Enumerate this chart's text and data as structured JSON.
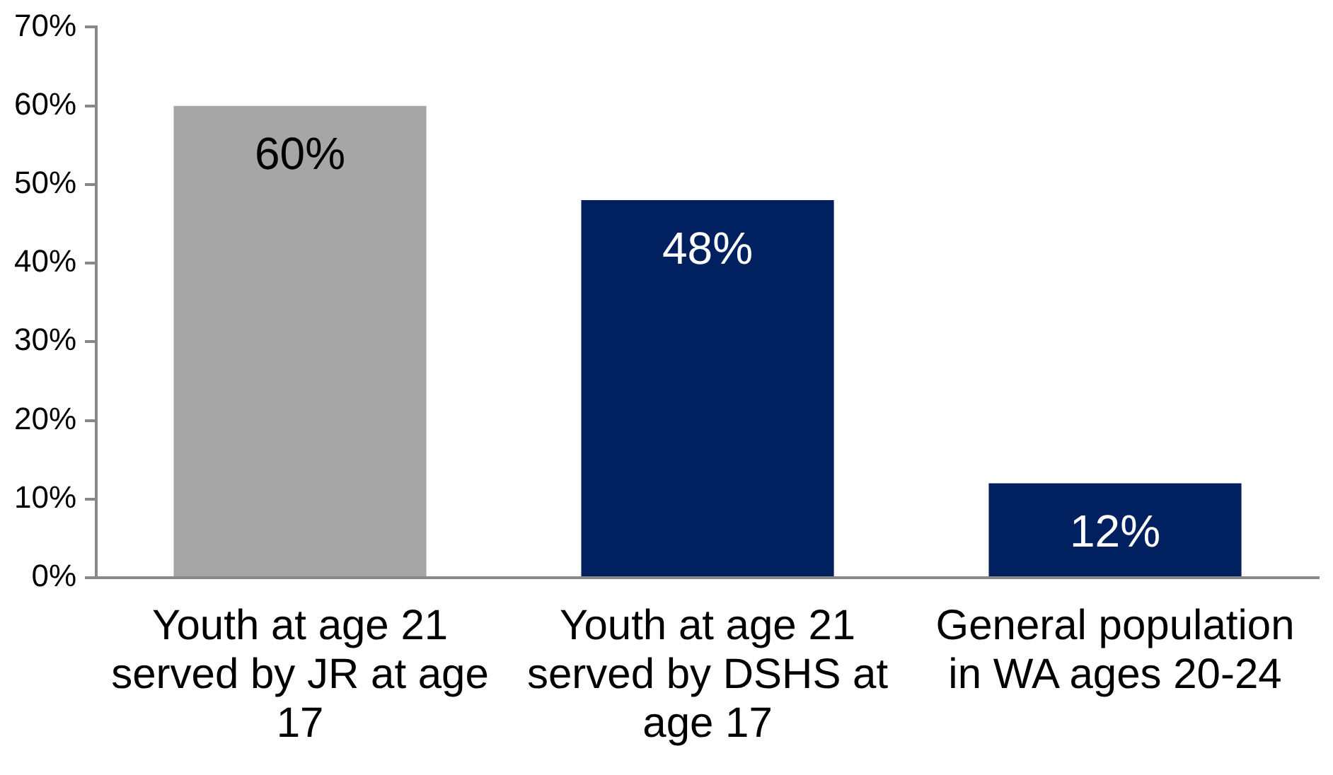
{
  "chart_data": {
    "type": "bar",
    "categories": [
      "Youth at age 21 served by JR at age 17",
      "Youth at age 21 served by DSHS at age 17",
      "General population in WA ages 20-24"
    ],
    "values": [
      60,
      48,
      12
    ],
    "colors": [
      "#a6a6a6",
      "#002060",
      "#002060"
    ],
    "value_labels": [
      "60%",
      "48%",
      "12%"
    ],
    "ylim": [
      0,
      70
    ],
    "yticks": [
      {
        "value": 0,
        "label": "0%"
      },
      {
        "value": 10,
        "label": "10%"
      },
      {
        "value": 20,
        "label": "20%"
      },
      {
        "value": 30,
        "label": "30%"
      },
      {
        "value": 40,
        "label": "40%"
      },
      {
        "value": 50,
        "label": "50%"
      },
      {
        "value": 60,
        "label": "60%"
      },
      {
        "value": 70,
        "label": "70%"
      }
    ],
    "grid": false,
    "legend": false
  }
}
